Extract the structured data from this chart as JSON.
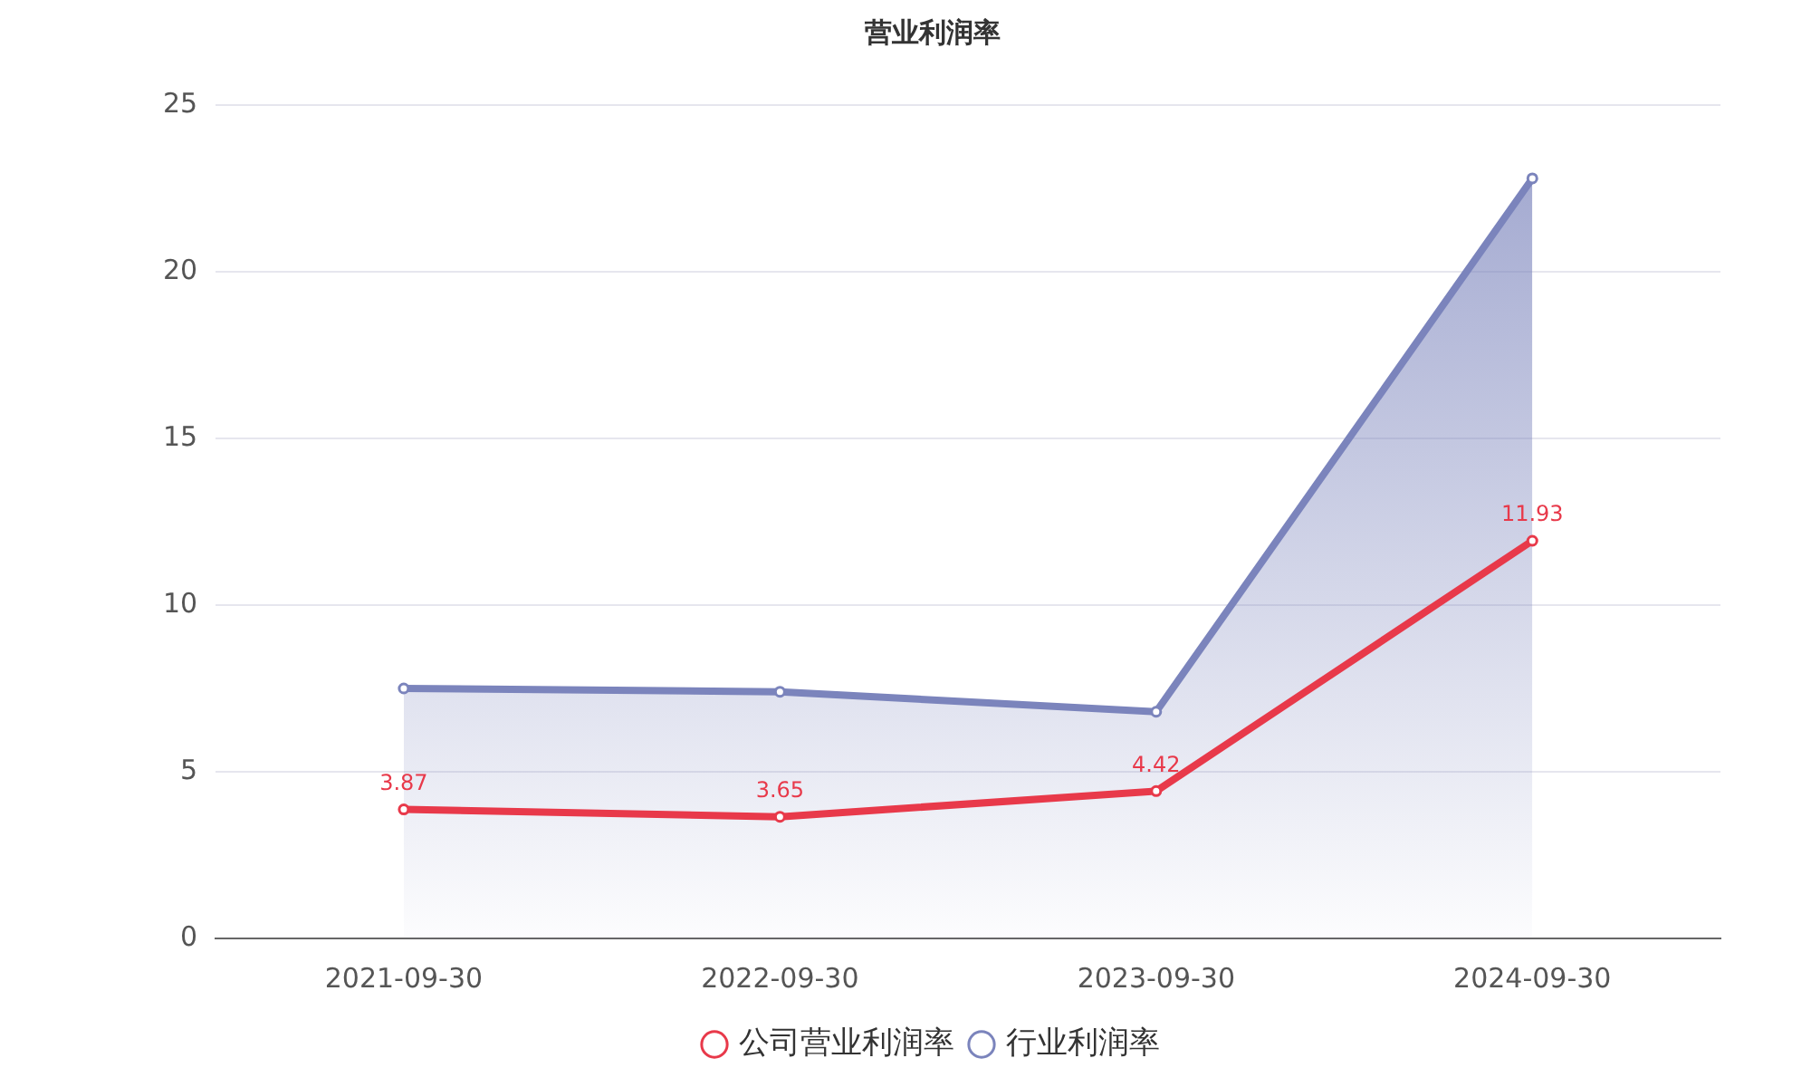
{
  "chart_data": {
    "type": "line",
    "title": "营业利润率",
    "categories": [
      "2021-09-30",
      "2022-09-30",
      "2023-09-30",
      "2024-09-30"
    ],
    "series": [
      {
        "name": "公司营业利润率",
        "type": "line",
        "color": "#e8394a",
        "values": [
          3.87,
          3.65,
          4.42,
          11.93
        ],
        "value_labels": [
          "3.87",
          "3.65",
          "4.42",
          "11.93"
        ]
      },
      {
        "name": "行业利润率",
        "type": "area",
        "color": "#7b84bc",
        "values": [
          7.5,
          7.4,
          6.8,
          22.8
        ]
      }
    ],
    "ylim": [
      0,
      25
    ],
    "yticks": [
      0,
      5,
      10,
      15,
      20,
      25
    ],
    "grid": "y",
    "legend": "bottom",
    "marker": "circle"
  }
}
